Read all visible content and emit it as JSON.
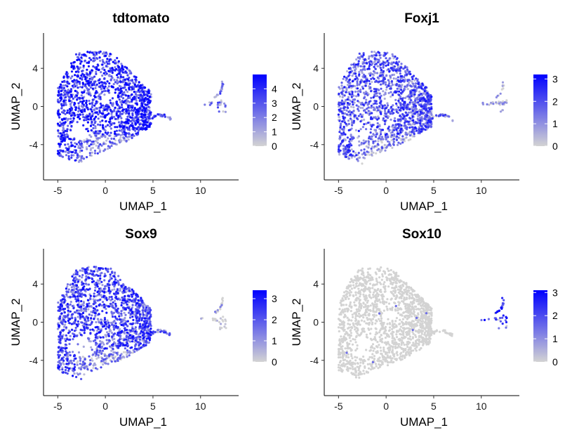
{
  "chart_data": [
    {
      "type": "scatter",
      "title": "tdtomato",
      "xlabel": "UMAP_1",
      "ylabel": "UMAP_2",
      "xlim": [
        -6.5,
        14
      ],
      "ylim": [
        -7.7,
        7.7
      ],
      "xticks": [
        -5,
        0,
        5,
        10
      ],
      "yticks": [
        -4,
        0,
        4
      ],
      "legend": {
        "position": "right",
        "min": 0,
        "max": 5,
        "ticks": [
          0,
          1,
          2,
          3,
          4
        ]
      },
      "colors": {
        "low": "#d3d3d3",
        "high": "#0000ff"
      },
      "expression_profile": "high-broad",
      "series": [
        {
          "region": "main cluster",
          "points": 1600,
          "x_range": [
            -5,
            4.8
          ],
          "y_range": [
            -6.3,
            6.2
          ],
          "mean_expression": 3.4
        },
        {
          "region": "tail",
          "points": 35,
          "x_range": [
            4.5,
            7
          ],
          "y_range": [
            -1.3,
            -0.6
          ],
          "mean_expression": 2.5
        },
        {
          "region": "right arc",
          "points": 40,
          "x_range": [
            10,
            13
          ],
          "y_range": [
            -0.8,
            3.5
          ],
          "mean_expression": 2.0
        }
      ]
    },
    {
      "type": "scatter",
      "title": "Foxj1",
      "xlabel": "UMAP_1",
      "ylabel": "UMAP_2",
      "xlim": [
        -6.5,
        14
      ],
      "ylim": [
        -7.7,
        7.7
      ],
      "xticks": [
        -5,
        0,
        5,
        10
      ],
      "yticks": [
        -4,
        0,
        4
      ],
      "legend": {
        "position": "right",
        "min": 0,
        "max": 3.2,
        "ticks": [
          0,
          1,
          2,
          3
        ]
      },
      "colors": {
        "low": "#d3d3d3",
        "high": "#0000ff"
      },
      "expression_profile": "medium",
      "series": [
        {
          "region": "main cluster",
          "points": 1600,
          "x_range": [
            -5,
            4.8
          ],
          "y_range": [
            -6.3,
            6.2
          ],
          "mean_expression": 1.6
        },
        {
          "region": "tail",
          "points": 35,
          "x_range": [
            4.5,
            7
          ],
          "y_range": [
            -1.3,
            -0.6
          ],
          "mean_expression": 1.2
        },
        {
          "region": "right arc",
          "points": 40,
          "x_range": [
            10,
            13
          ],
          "y_range": [
            -0.8,
            3.5
          ],
          "mean_expression": 0.1
        }
      ]
    },
    {
      "type": "scatter",
      "title": "Sox9",
      "xlabel": "UMAP_1",
      "ylabel": "UMAP_2",
      "xlim": [
        -6.5,
        14
      ],
      "ylim": [
        -7.7,
        7.7
      ],
      "xticks": [
        -5,
        0,
        5,
        10
      ],
      "yticks": [
        -4,
        0,
        4
      ],
      "legend": {
        "position": "right",
        "min": 0,
        "max": 3.4,
        "ticks": [
          0,
          1,
          2,
          3
        ]
      },
      "colors": {
        "low": "#d3d3d3",
        "high": "#0000ff"
      },
      "expression_profile": "medium",
      "series": [
        {
          "region": "main cluster",
          "points": 1600,
          "x_range": [
            -5,
            4.8
          ],
          "y_range": [
            -6.3,
            6.2
          ],
          "mean_expression": 1.9
        },
        {
          "region": "tail",
          "points": 35,
          "x_range": [
            4.5,
            7
          ],
          "y_range": [
            -1.3,
            -0.6
          ],
          "mean_expression": 1.4
        },
        {
          "region": "right arc",
          "points": 40,
          "x_range": [
            10,
            13
          ],
          "y_range": [
            -0.8,
            3.5
          ],
          "mean_expression": 0.2
        }
      ]
    },
    {
      "type": "scatter",
      "title": "Sox10",
      "xlabel": "UMAP_1",
      "ylabel": "UMAP_2",
      "xlim": [
        -6.5,
        14
      ],
      "ylim": [
        -7.7,
        7.7
      ],
      "xticks": [
        -5,
        0,
        5,
        10
      ],
      "yticks": [
        -4,
        0,
        4
      ],
      "legend": {
        "position": "right",
        "min": 0,
        "max": 3.1,
        "ticks": [
          0,
          1,
          2,
          3
        ]
      },
      "colors": {
        "low": "#d3d3d3",
        "high": "#0000ff"
      },
      "expression_profile": "restricted",
      "series": [
        {
          "region": "main cluster",
          "points": 1600,
          "x_range": [
            -5,
            4.8
          ],
          "y_range": [
            -6.3,
            6.2
          ],
          "mean_expression": 0.0
        },
        {
          "region": "tail",
          "points": 35,
          "x_range": [
            4.5,
            7
          ],
          "y_range": [
            -1.3,
            -0.6
          ],
          "mean_expression": 0.1
        },
        {
          "region": "right arc",
          "points": 40,
          "x_range": [
            10,
            13
          ],
          "y_range": [
            -0.8,
            3.5
          ],
          "mean_expression": 2.3
        }
      ]
    }
  ]
}
